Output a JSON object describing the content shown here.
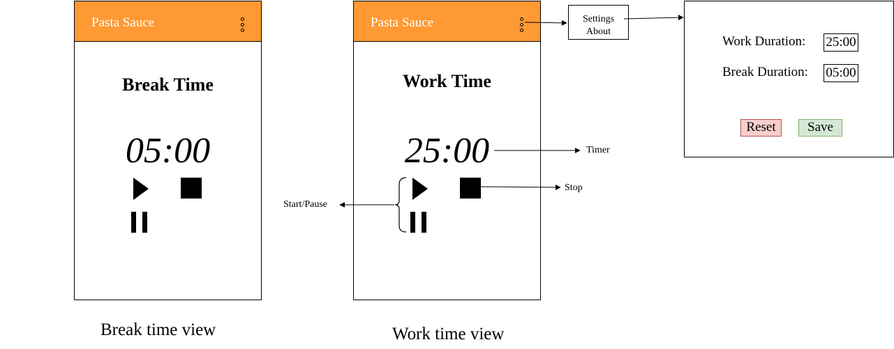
{
  "colors": {
    "appbar": "#ff9933",
    "reset_fill": "#f8cecc",
    "reset_border": "#b85450",
    "save_fill": "#d5e8d4",
    "save_border": "#82b366"
  },
  "icons": [
    "kebab-menu-icon",
    "play-icon",
    "stop-icon",
    "pause-icon"
  ],
  "break_view": {
    "app_title": "Pasta Sauce",
    "heading": "Break Time",
    "timer": "05:00",
    "caption": "Break time view"
  },
  "work_view": {
    "app_title": "Pasta Sauce",
    "heading": "Work Time",
    "timer": "25:00",
    "caption": "Work time view"
  },
  "menu": {
    "items": [
      "Settings",
      "About"
    ]
  },
  "annotations": {
    "timer": "Timer",
    "stop": "Stop",
    "start_pause": "Start/Pause"
  },
  "settings": {
    "work_label": "Work Duration:",
    "work_value": "25:00",
    "break_label": "Break Duration:",
    "break_value": "05:00",
    "reset_label": "Reset",
    "save_label": "Save"
  }
}
